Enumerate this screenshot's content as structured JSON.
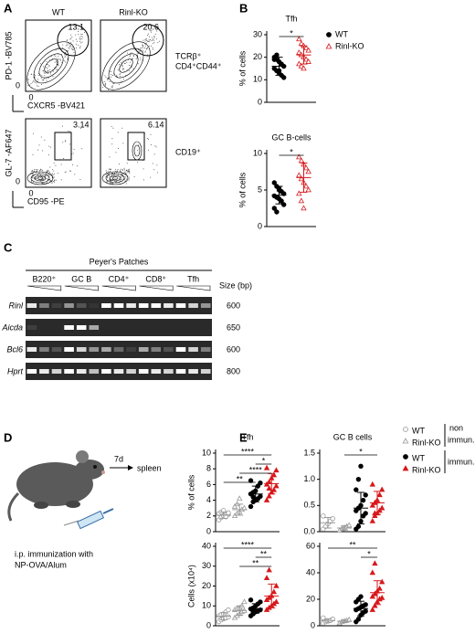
{
  "panel_labels": [
    "A",
    "B",
    "C",
    "D",
    "E"
  ],
  "flow": {
    "genotypes": [
      "WT",
      "Rinl-KO"
    ],
    "rows": [
      {
        "gates": [
          "13.1",
          "20.6"
        ],
        "population": [
          "TCRβ⁺",
          "CD4⁺CD44⁺"
        ],
        "y_label": "PD-1 -BV785",
        "x_label": "CXCR5 -BV421",
        "axis_zero": [
          "0",
          "0"
        ]
      },
      {
        "gates": [
          "3.14",
          "6.14"
        ],
        "population": [
          "CD19⁺"
        ],
        "y_label": "GL-7 -AF647",
        "x_label": "CD95 -PE",
        "axis_zero": [
          "0",
          "0"
        ]
      }
    ]
  },
  "gel": {
    "title": "Peyer's Patches",
    "lanes": [
      "B220⁺",
      "GC B",
      "CD4⁺",
      "CD8⁺",
      "Tfh"
    ],
    "size_header": "Size (bp)",
    "genes": [
      {
        "name": "Rinl",
        "size": "600"
      },
      {
        "name": "Aicda",
        "size": "650"
      },
      {
        "name": "Bcl6",
        "size": "600"
      },
      {
        "name": "Hprt",
        "size": "800"
      }
    ]
  },
  "schematic": {
    "interval": "7d",
    "target": "spleen",
    "caption": [
      "i.p. immunization with",
      "NP-OVA/Alum"
    ]
  },
  "legend_e": {
    "groups": [
      "non",
      "immun.",
      "immun."
    ]
  },
  "chart_data": [
    {
      "type": "dot",
      "title": "Tfh",
      "y_label": "% of cells",
      "ylim": [
        0,
        30
      ],
      "yticks": [
        0,
        10,
        20,
        30
      ],
      "series": [
        {
          "name": "WT",
          "color": "#000000",
          "marker": "circle",
          "filled": true,
          "values": [
            20,
            19,
            18,
            17,
            16,
            15,
            14,
            13,
            12,
            11,
            19,
            21,
            14
          ],
          "mean": 16,
          "error": 4
        },
        {
          "name": "Rinl-KO",
          "color": "#d7191c",
          "marker": "triangle",
          "filled": false,
          "values": [
            28,
            26,
            25,
            24,
            23,
            22,
            21,
            20,
            19,
            18,
            17,
            16,
            15
          ],
          "mean": 21,
          "error": 4
        }
      ],
      "comparisons": [
        {
          "groups": [
            0,
            1
          ],
          "label": "*"
        }
      ]
    },
    {
      "type": "dot",
      "title": "GC B-cells",
      "y_label": "% of cells",
      "ylim": [
        0,
        10
      ],
      "yticks": [
        0,
        5,
        10
      ],
      "series": [
        {
          "color": "#000000",
          "marker": "circle",
          "filled": true,
          "values": [
            6,
            5.5,
            5,
            4.8,
            4.5,
            4.2,
            4,
            3.8,
            3.5,
            3,
            2.5,
            2,
            5.2
          ],
          "mean": 4.3,
          "error": 1.2
        },
        {
          "color": "#d7191c",
          "marker": "triangle",
          "filled": false,
          "values": [
            9.5,
            9,
            8.5,
            8,
            7.5,
            7,
            6.5,
            6,
            5.5,
            5,
            4.5,
            3.5,
            2.5
          ],
          "mean": 6.7,
          "error": 2
        }
      ],
      "comparisons": [
        {
          "groups": [
            0,
            1
          ],
          "label": "*"
        }
      ]
    },
    {
      "type": "dot",
      "title": "Tfh",
      "y_label": "% of cells",
      "ylim": [
        0,
        10
      ],
      "yticks": [
        0,
        2,
        4,
        6,
        8,
        10
      ],
      "series": [
        {
          "name": "WT",
          "color": "#999999",
          "marker": "circle",
          "filled": false,
          "values": [
            1.5,
            1.8,
            2,
            2.1,
            2.2,
            2.3,
            2.5,
            2.7,
            1.9,
            2.4
          ],
          "mean": 2.1,
          "error": 0.4
        },
        {
          "name": "Rinl-KO",
          "color": "#999999",
          "marker": "triangle",
          "filled": false,
          "values": [
            2,
            2.3,
            2.5,
            2.8,
            3,
            3.2,
            3.5,
            4.2
          ],
          "mean": 2.8,
          "error": 0.7
        },
        {
          "name": "WT",
          "color": "#000000",
          "marker": "circle",
          "filled": true,
          "values": [
            3.2,
            3.8,
            4,
            4.2,
            4.5,
            4.8,
            5,
            5.2,
            5.8,
            6.2,
            6.5,
            4.4
          ],
          "mean": 4.8,
          "error": 1
        },
        {
          "name": "Rinl-KO",
          "color": "#d7191c",
          "marker": "triangle",
          "filled": true,
          "values": [
            4,
            4.5,
            5,
            5.3,
            5.8,
            6,
            6.3,
            6.8,
            7.2,
            7.8,
            8.1,
            5.5
          ],
          "mean": 6.1,
          "error": 1.3
        }
      ],
      "comparisons": [
        {
          "groups": [
            0,
            3
          ],
          "label": "****"
        },
        {
          "groups": [
            2,
            3
          ],
          "label": "*"
        },
        {
          "groups": [
            1,
            3
          ],
          "label": "****"
        },
        {
          "groups": [
            0,
            2
          ],
          "label": "**"
        }
      ]
    },
    {
      "type": "dot",
      "title": "GC B cells",
      "ylim": [
        0,
        1.5
      ],
      "yticks": [
        {
          "value": 0,
          "label": "0.0"
        },
        {
          "value": 0.5,
          "label": "0.5"
        },
        {
          "value": 1,
          "label": "1.0"
        },
        {
          "value": 1.5,
          "label": "1.5"
        }
      ],
      "series": [
        {
          "color": "#999999",
          "marker": "circle",
          "filled": false,
          "values": [
            0.05,
            0.1,
            0.15,
            0.2,
            0.25,
            0.3
          ],
          "mean": 0.17,
          "error": 0.1
        },
        {
          "color": "#999999",
          "marker": "triangle",
          "filled": false,
          "values": [
            0.02,
            0.05,
            0.08,
            0.1,
            0.12
          ],
          "mean": 0.07,
          "error": 0.04
        },
        {
          "color": "#000000",
          "marker": "circle",
          "filled": true,
          "values": [
            0.05,
            0.1,
            0.2,
            0.3,
            0.35,
            0.4,
            0.45,
            0.5,
            0.6,
            0.7,
            0.8,
            1.0,
            1.25
          ],
          "mean": 0.45,
          "error": 0.3
        },
        {
          "color": "#d7191c",
          "marker": "triangle",
          "filled": true,
          "values": [
            0.2,
            0.3,
            0.35,
            0.4,
            0.45,
            0.5,
            0.55,
            0.6,
            0.7,
            0.8,
            0.9,
            0.35
          ],
          "mean": 0.55,
          "error": 0.22
        }
      ],
      "comparisons": [
        {
          "groups": [
            1,
            3
          ],
          "label": "*"
        }
      ]
    },
    {
      "type": "dot",
      "y_label": "Cells (x10⁴)",
      "ylim": [
        0,
        40
      ],
      "yticks": [
        0,
        10,
        20,
        30,
        40
      ],
      "series": [
        {
          "color": "#999999",
          "marker": "circle",
          "filled": false,
          "values": [
            2,
            3,
            3.5,
            4,
            4.5,
            5,
            5.5,
            6,
            7,
            8
          ],
          "mean": 4.8,
          "error": 1.8
        },
        {
          "color": "#999999",
          "marker": "triangle",
          "filled": false,
          "values": [
            4,
            5,
            6,
            7,
            7.5,
            8,
            8.5,
            9,
            10,
            12
          ],
          "mean": 7.7,
          "error": 2.3
        },
        {
          "color": "#000000",
          "marker": "circle",
          "filled": true,
          "values": [
            5,
            6,
            7,
            7.5,
            8,
            8.5,
            9,
            10,
            11,
            12,
            13,
            7
          ],
          "mean": 8.7,
          "error": 2.4
        },
        {
          "color": "#d7191c",
          "marker": "triangle",
          "filled": true,
          "values": [
            8,
            9,
            10,
            11,
            12,
            13,
            14,
            15,
            17,
            20,
            24,
            28
          ],
          "mean": 15,
          "error": 6
        }
      ],
      "comparisons": [
        {
          "groups": [
            0,
            3
          ],
          "label": "****"
        },
        {
          "groups": [
            2,
            3
          ],
          "label": "**"
        },
        {
          "groups": [
            1,
            3
          ],
          "label": "**"
        }
      ]
    },
    {
      "type": "dot",
      "ylim": [
        0,
        60
      ],
      "yticks": [
        0,
        20,
        40,
        60
      ],
      "series": [
        {
          "color": "#999999",
          "marker": "circle",
          "filled": false,
          "values": [
            2,
            3,
            3.5,
            4,
            5,
            6
          ],
          "mean": 4,
          "error": 1.3
        },
        {
          "color": "#999999",
          "marker": "triangle",
          "filled": false,
          "values": [
            2,
            3,
            3.5,
            4,
            4.5
          ],
          "mean": 3.4,
          "error": 0.9
        },
        {
          "color": "#000000",
          "marker": "circle",
          "filled": true,
          "values": [
            3,
            5,
            8,
            10,
            11,
            12,
            13,
            14,
            15,
            16,
            18,
            20,
            22
          ],
          "mean": 13,
          "error": 5.5
        },
        {
          "color": "#d7191c",
          "marker": "triangle",
          "filled": true,
          "values": [
            12,
            15,
            18,
            20,
            21,
            22,
            24,
            26,
            28,
            33,
            40,
            47
          ],
          "mean": 25,
          "error": 9
        }
      ],
      "comparisons": [
        {
          "groups": [
            0,
            3
          ],
          "label": "**"
        },
        {
          "groups": [
            2,
            3
          ],
          "label": "*"
        }
      ]
    }
  ]
}
